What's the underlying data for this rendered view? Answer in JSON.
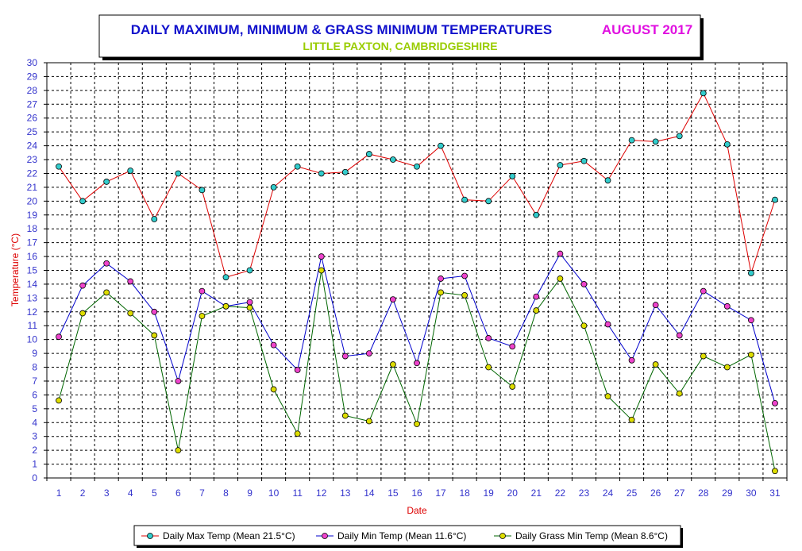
{
  "title": {
    "main": "DAILY MAXIMUM, MINIMUM & GRASS MINIMUM TEMPERATURES",
    "month": "AUGUST 2017",
    "location": "LITTLE PAXTON, CAMBRIDGESHIRE"
  },
  "colors": {
    "title_main": "#1010cc",
    "title_month": "#e010e0",
    "title_location": "#99cc00",
    "ticks": "#3333cc",
    "axis_labels": "#dd0000",
    "grid": "#000000",
    "background": "#ffffff"
  },
  "chart_data": {
    "type": "line",
    "xlabel": "Date",
    "ylabel": "Temperature (°C)",
    "x": [
      1,
      2,
      3,
      4,
      5,
      6,
      7,
      8,
      9,
      10,
      11,
      12,
      13,
      14,
      15,
      16,
      17,
      18,
      19,
      20,
      21,
      22,
      23,
      24,
      25,
      26,
      27,
      28,
      29,
      30,
      31
    ],
    "ylim": [
      0,
      30
    ],
    "ytick_step": 1,
    "grid": true,
    "legend_position": "bottom",
    "series": [
      {
        "name": "Daily Max Temp (Mean 21.5°C)",
        "line_color": "#dd0000",
        "marker_color": "#33cccc",
        "values": [
          22.5,
          20.0,
          21.4,
          22.2,
          18.7,
          22.0,
          20.8,
          14.5,
          15.0,
          21.0,
          22.5,
          22.0,
          22.1,
          23.4,
          23.0,
          22.5,
          24.0,
          20.1,
          20.0,
          21.8,
          19.0,
          22.6,
          22.9,
          21.5,
          24.4,
          24.3,
          24.7,
          27.8,
          24.1,
          14.8,
          20.1
        ]
      },
      {
        "name": "Daily Min Temp (Mean 11.6°C)",
        "line_color": "#0000cc",
        "marker_color": "#ee44cc",
        "values": [
          10.2,
          13.9,
          15.5,
          14.2,
          12.0,
          7.0,
          13.5,
          12.4,
          12.7,
          9.6,
          7.8,
          16.0,
          8.8,
          9.0,
          12.9,
          8.3,
          14.4,
          14.6,
          10.1,
          9.5,
          13.1,
          16.2,
          14.0,
          11.1,
          8.5,
          12.5,
          10.3,
          13.5,
          12.4,
          11.4,
          5.4
        ]
      },
      {
        "name": "Daily Grass Min Temp (Mean 8.6°C)",
        "line_color": "#006600",
        "marker_color": "#dddd00",
        "values": [
          5.6,
          11.9,
          13.4,
          11.9,
          10.3,
          2.0,
          11.7,
          12.4,
          12.3,
          6.4,
          3.2,
          15.0,
          4.5,
          4.1,
          8.2,
          3.9,
          13.4,
          13.2,
          8.0,
          6.6,
          12.1,
          14.4,
          11.0,
          5.9,
          4.2,
          8.2,
          6.1,
          8.8,
          8.0,
          8.9,
          0.5
        ]
      }
    ]
  }
}
